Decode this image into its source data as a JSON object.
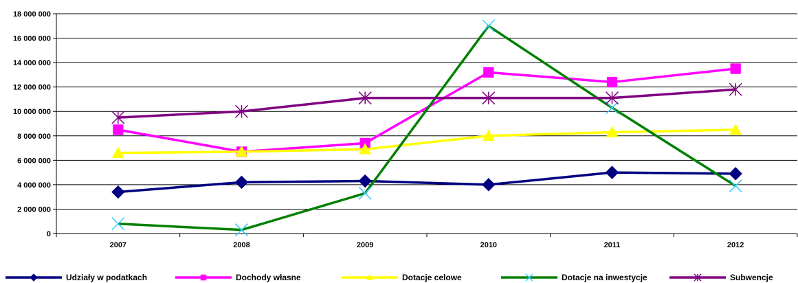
{
  "chart_data": {
    "type": "line",
    "categories": [
      "2007",
      "2008",
      "2009",
      "2010",
      "2011",
      "2012"
    ],
    "ylim": [
      0,
      18000000
    ],
    "yticks": [
      0,
      2000000,
      4000000,
      6000000,
      8000000,
      10000000,
      12000000,
      14000000,
      16000000,
      18000000
    ],
    "ytick_labels": [
      "0",
      "2 000 000",
      "4 000 000",
      "6 000 000",
      "8 000 000",
      "10 000 000",
      "12 000 000",
      "14 000 000",
      "16 000 000",
      "18 000 000"
    ],
    "grid": "horizontal",
    "legend_position": "bottom",
    "series": [
      {
        "name": "Udziały w podatkach",
        "color": "#000080",
        "marker": "diamond",
        "values": [
          3400000,
          4200000,
          4300000,
          4000000,
          5000000,
          4900000
        ]
      },
      {
        "name": "Dochody własne",
        "color": "#FF00FF",
        "marker": "square",
        "values": [
          8500000,
          6700000,
          7400000,
          13200000,
          12400000,
          13500000
        ]
      },
      {
        "name": "Dotacje celowe",
        "color": "#FFFF00",
        "marker": "triangle",
        "values": [
          6600000,
          6700000,
          6900000,
          8000000,
          8300000,
          8500000
        ]
      },
      {
        "name": "Dotacje na inwestycje",
        "color": "#008000",
        "marker": "x",
        "values": [
          800000,
          300000,
          3300000,
          17000000,
          10300000,
          3900000
        ]
      },
      {
        "name": "Subwencje",
        "color": "#800080",
        "marker": "star",
        "values": [
          9500000,
          10000000,
          11100000,
          11100000,
          11100000,
          11800000
        ]
      }
    ]
  }
}
